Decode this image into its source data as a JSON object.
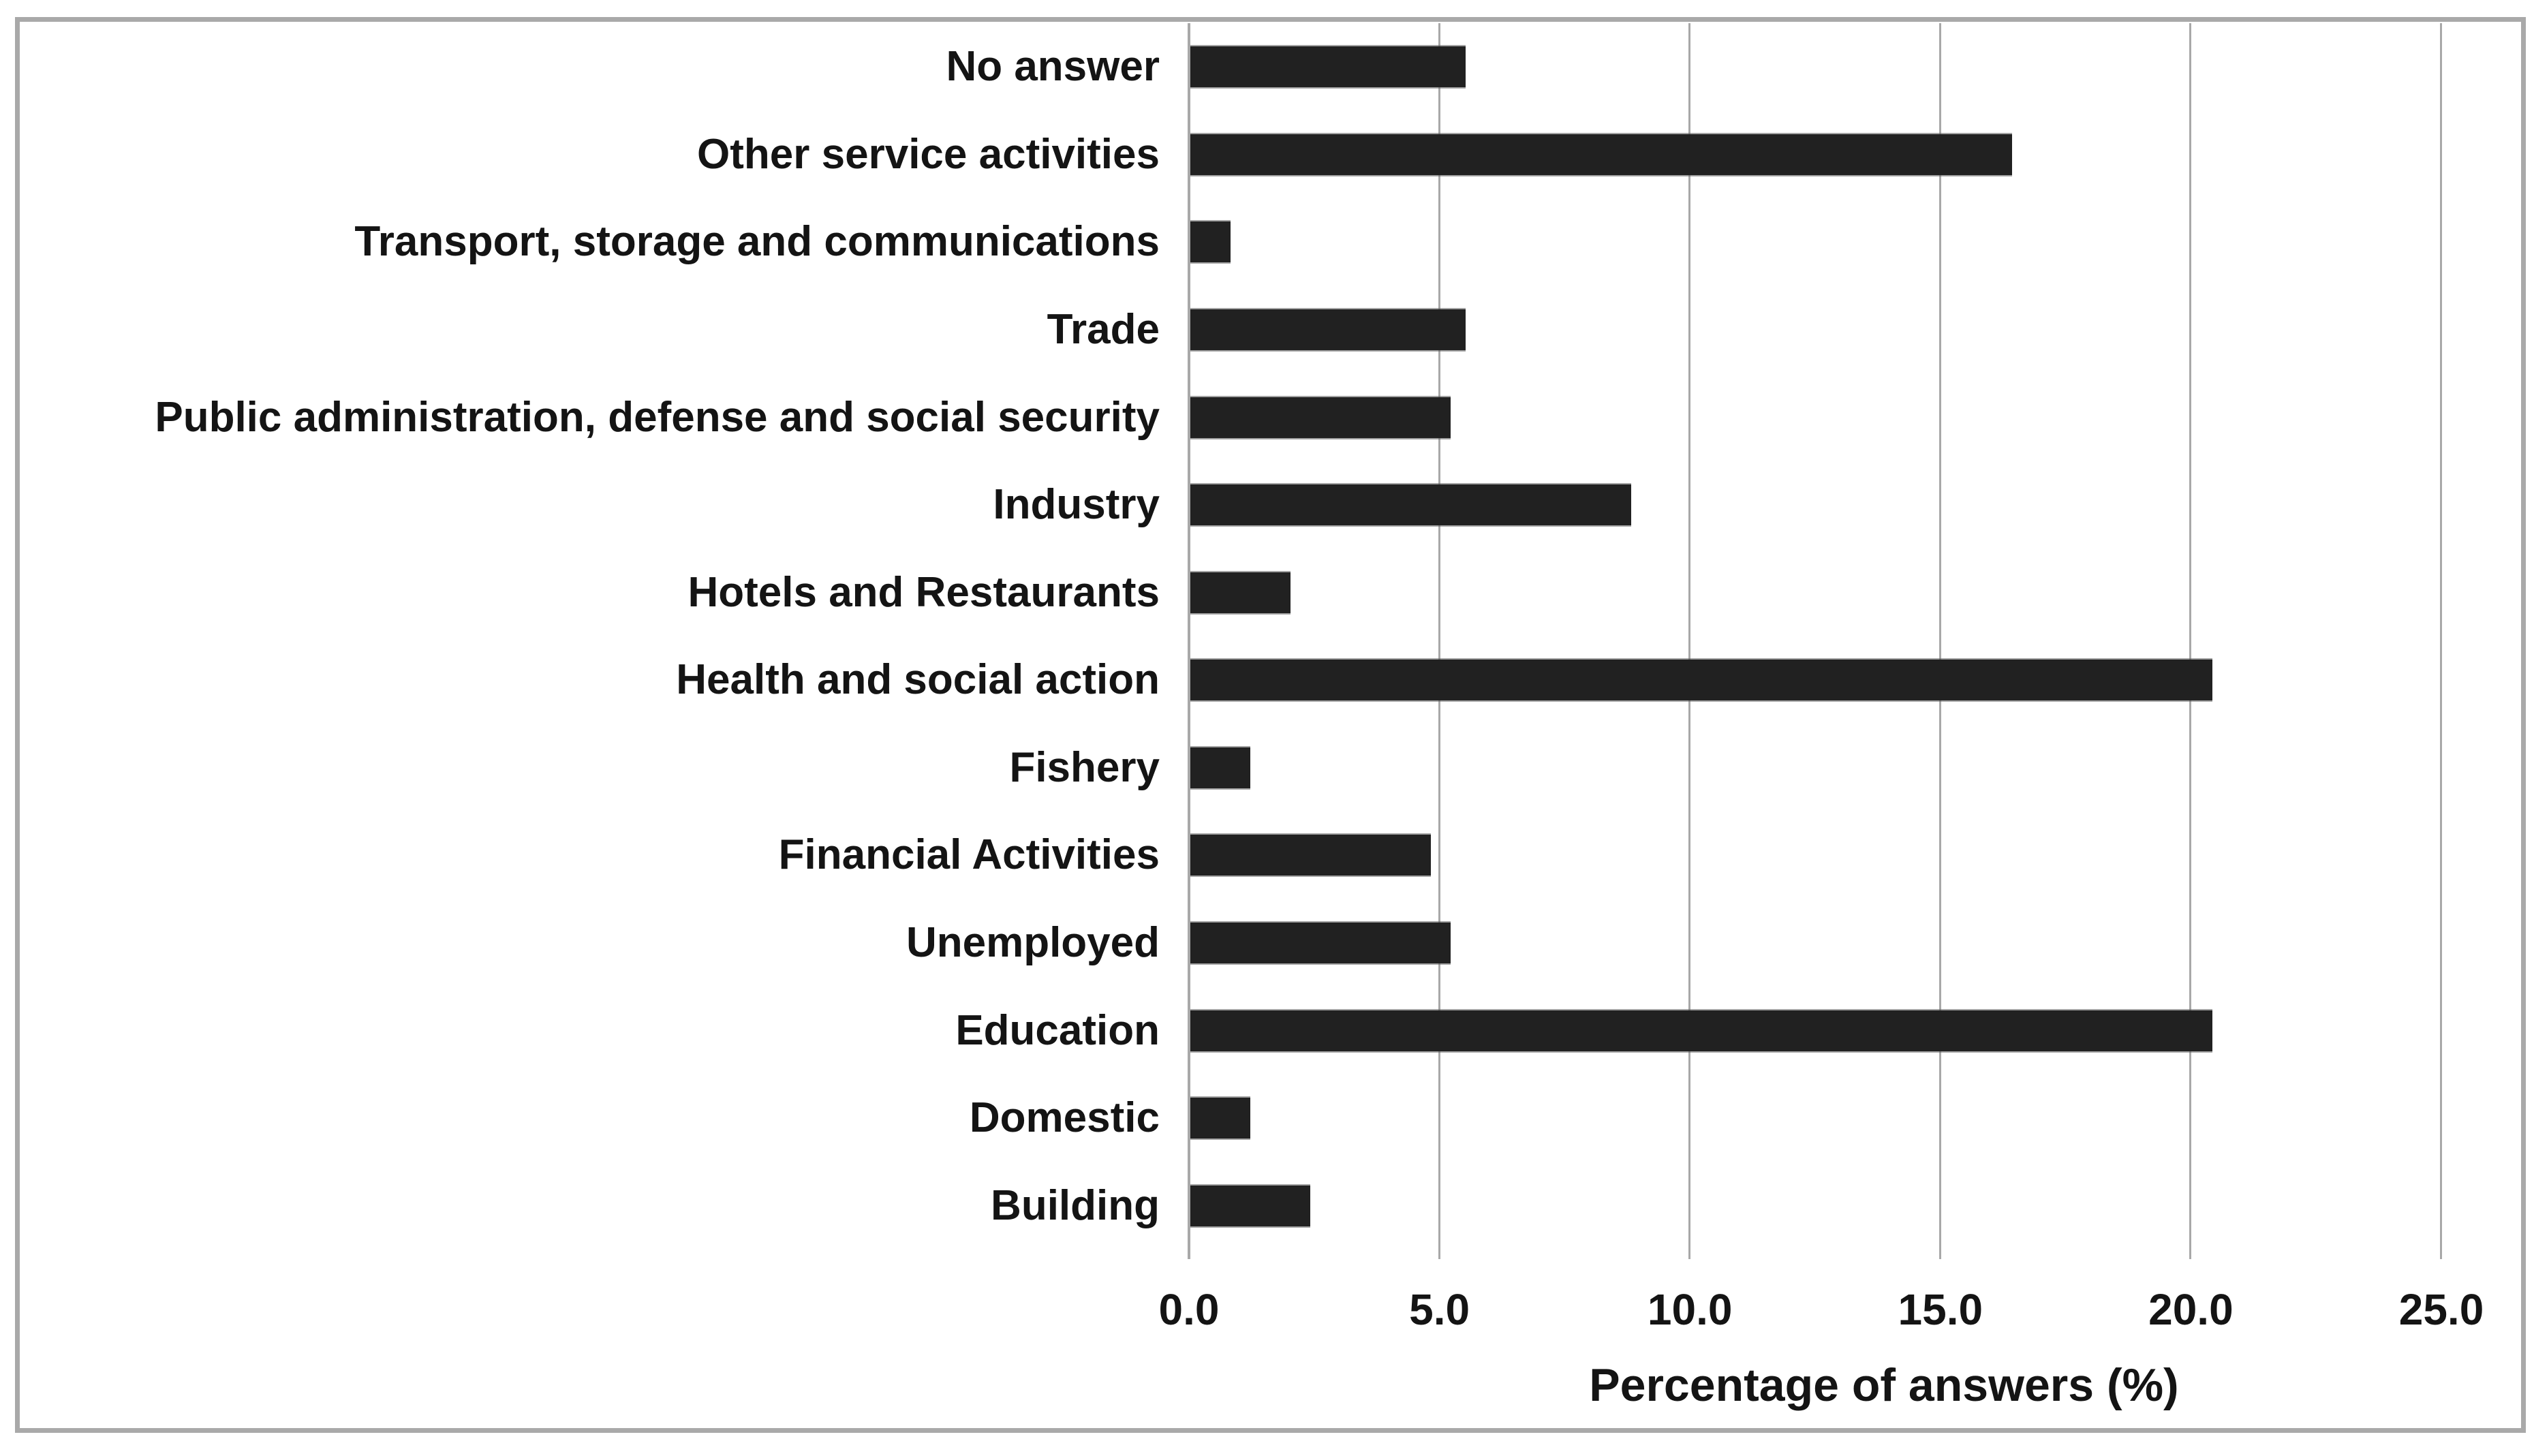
{
  "chart_data": {
    "type": "bar",
    "orientation": "horizontal",
    "title": "",
    "xlabel": "Percentage of answers (%)",
    "ylabel": "",
    "categories": [
      "No answer",
      "Other service activities",
      "Transport, storage and communications",
      "Trade",
      "Public administration, defense and social security",
      "Industry",
      "Hotels and Restaurants",
      "Health and social action",
      "Fishery",
      "Financial Activities",
      "Unemployed",
      "Education",
      "Domestic",
      "Building"
    ],
    "values": [
      5.5,
      16.4,
      0.8,
      5.5,
      5.2,
      8.8,
      2.0,
      20.4,
      1.2,
      4.8,
      5.2,
      20.4,
      1.2,
      2.4
    ],
    "x_ticks": [
      "0.0",
      "5.0",
      "10.0",
      "15.0",
      "20.0",
      "25.0"
    ],
    "x_tick_values": [
      0,
      5,
      10,
      15,
      20,
      25
    ],
    "xlim": [
      0,
      25
    ],
    "grid": true,
    "legend": false,
    "colors": {
      "bar": "#212121",
      "gridline": "#a8a8a8",
      "figure_border": "#a9a9a9",
      "text": "#141414",
      "background": "#ffffff"
    }
  }
}
